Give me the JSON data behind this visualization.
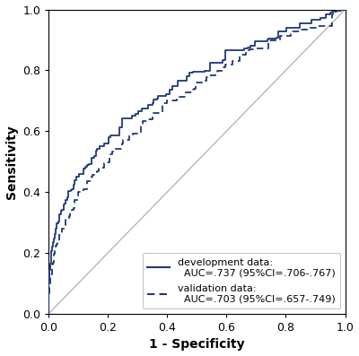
{
  "title": "",
  "xlabel": "1 - Specificity",
  "ylabel": "Sensitivity",
  "xlim": [
    0.0,
    1.0
  ],
  "ylim": [
    0.0,
    1.0
  ],
  "xticks": [
    0.0,
    0.2,
    0.4,
    0.6,
    0.8,
    1.0
  ],
  "yticks": [
    0.0,
    0.2,
    0.4,
    0.6,
    0.8,
    1.0
  ],
  "line_color": "#1f3878",
  "background_color": "#ffffff",
  "dev_label_line": "development data:",
  "dev_label_auc": "AUC=.737 (95%CI=.706-.767)",
  "val_label_line": "validation data:",
  "val_label_auc": "AUC=.703 (95%CI=.657-.749)",
  "figsize": [
    4.0,
    3.97
  ],
  "dpi": 100
}
